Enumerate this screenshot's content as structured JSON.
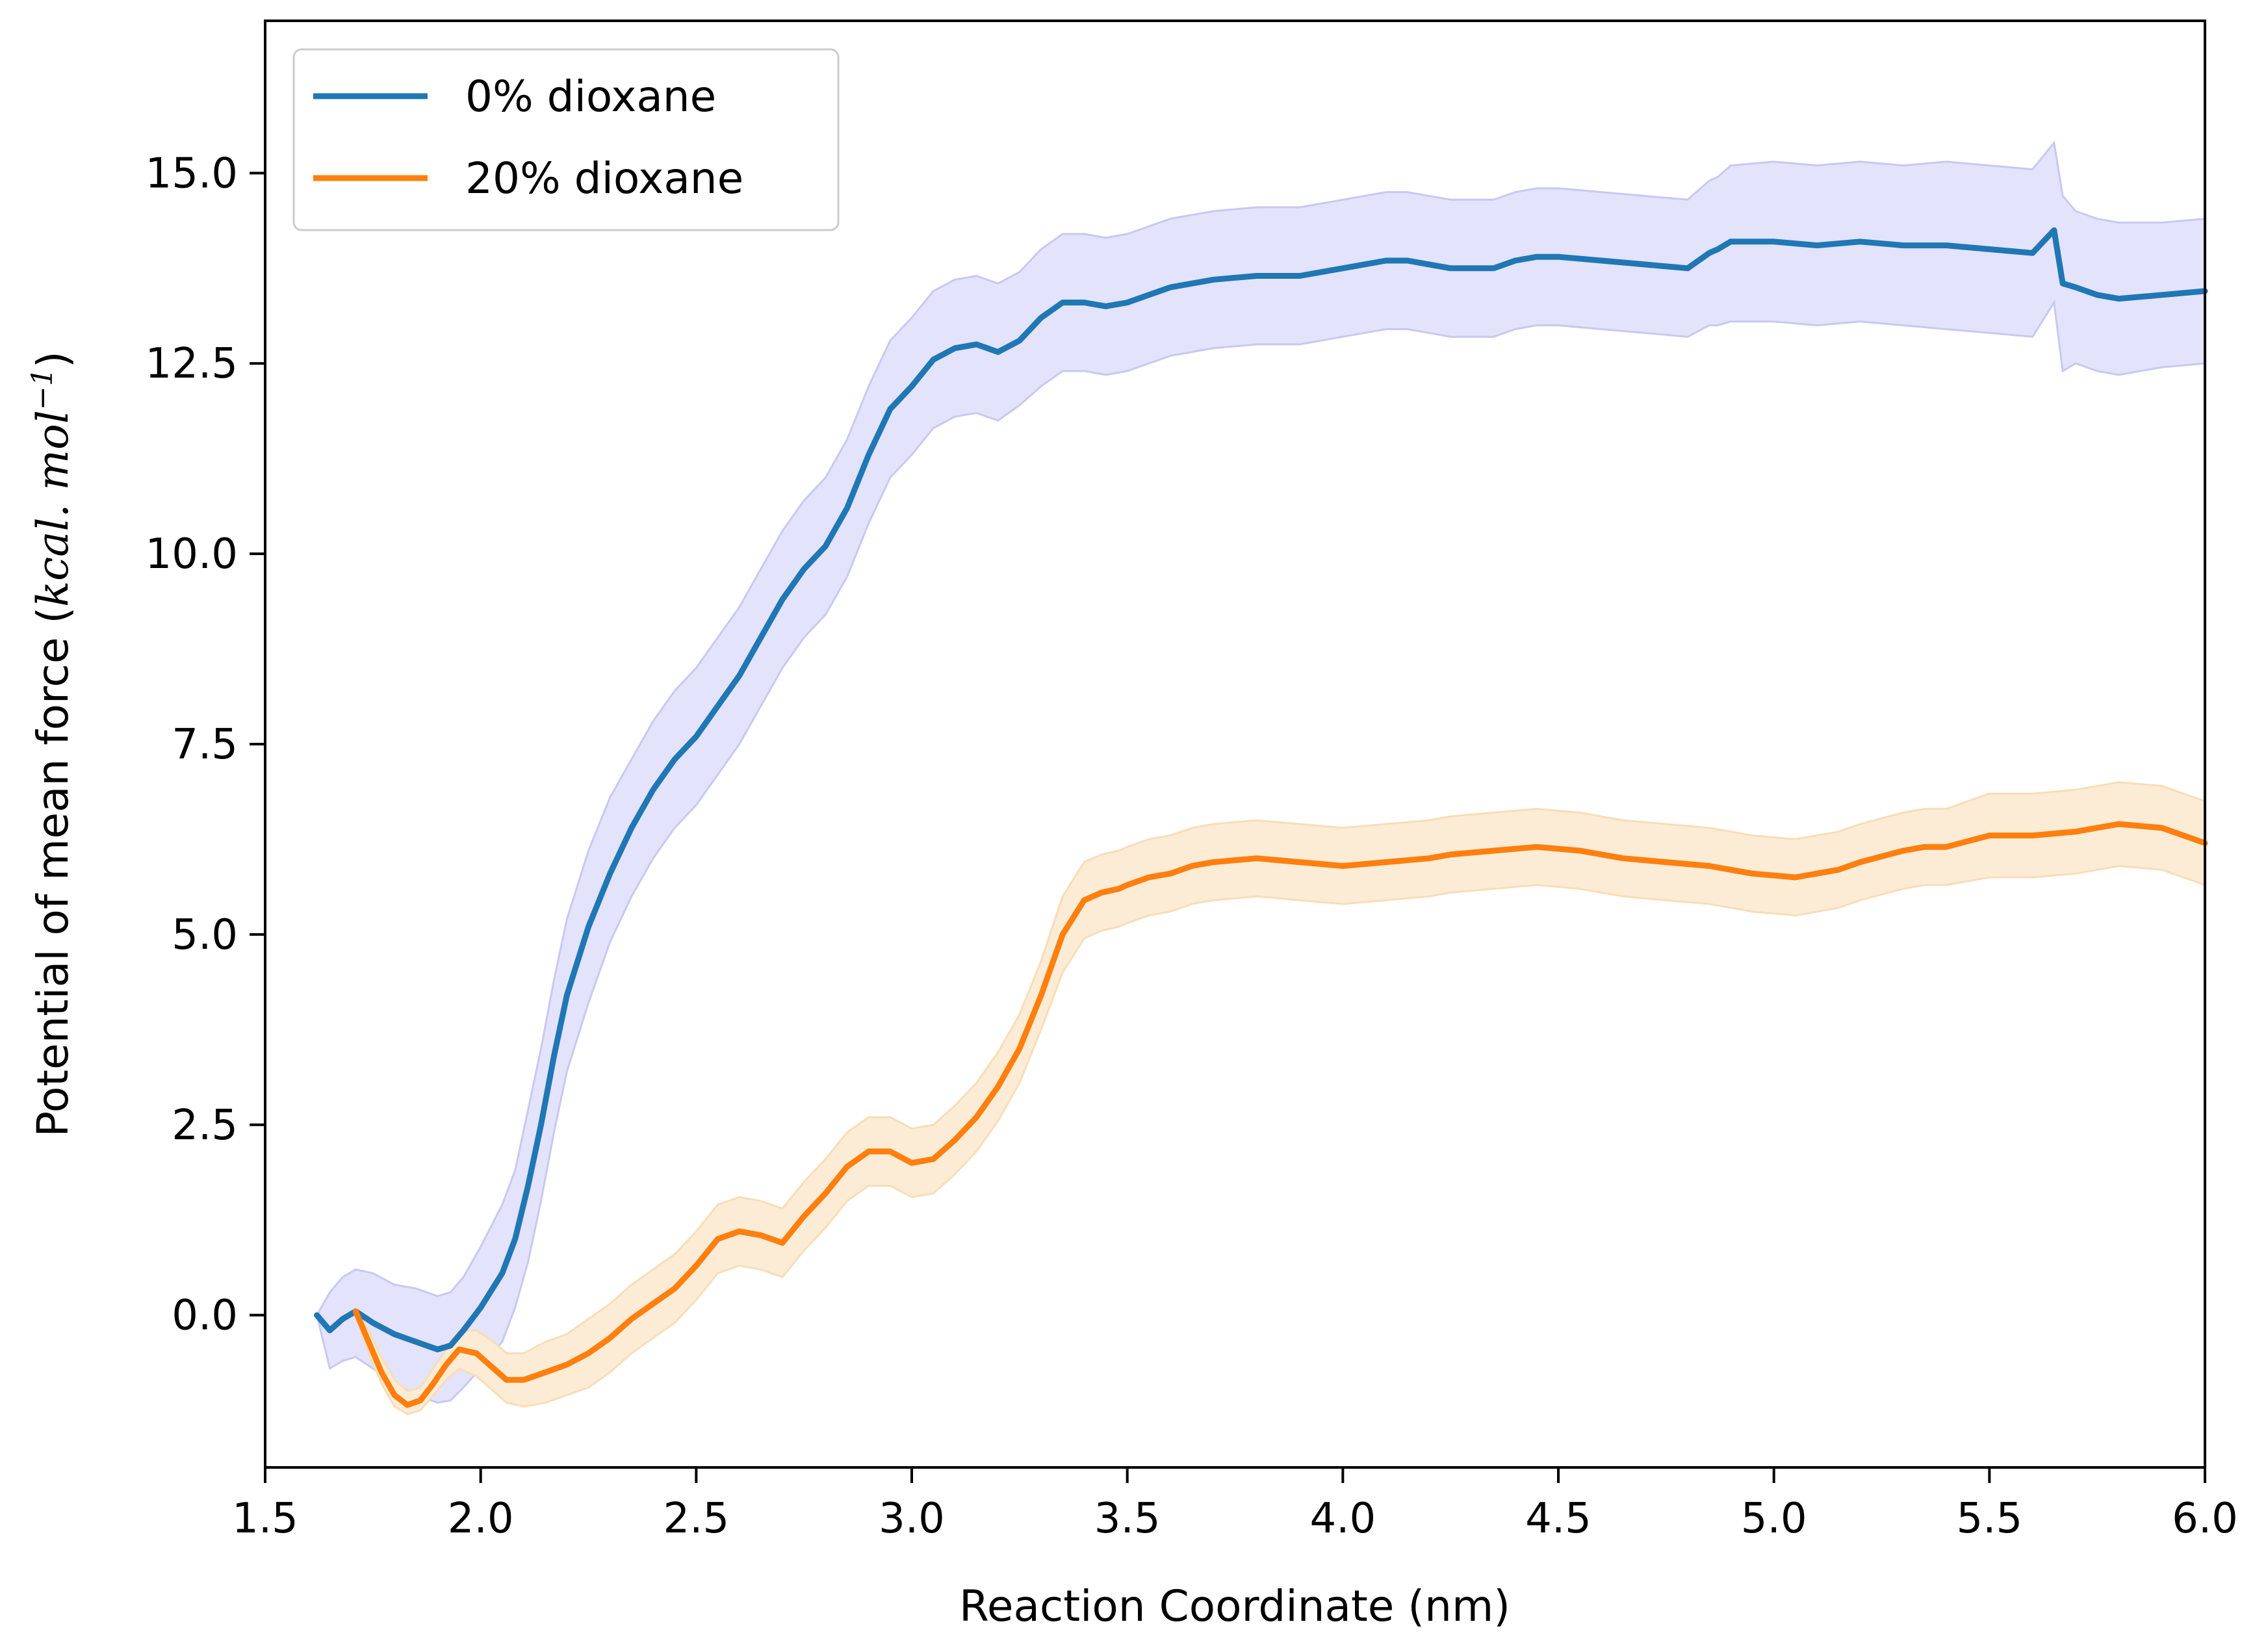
{
  "chart_data": {
    "type": "line",
    "title": "",
    "xlabel": "Reaction Coordinate (nm)",
    "ylabel_main": "Potential of mean force (",
    "ylabel_unit": "kcal. mol",
    "ylabel_exp": "−1",
    "ylabel_close": ")",
    "xlim": [
      1.5,
      6.0
    ],
    "ylim": [
      -2.0,
      17.0
    ],
    "xticks": [
      "1.5",
      "2.0",
      "2.5",
      "3.0",
      "3.5",
      "4.0",
      "4.5",
      "5.0",
      "5.5",
      "6.0"
    ],
    "yticks": [
      "0.0",
      "2.5",
      "5.0",
      "7.5",
      "10.0",
      "12.5",
      "15.0"
    ],
    "xtick_values": [
      1.5,
      2.0,
      2.5,
      3.0,
      3.5,
      4.0,
      4.5,
      5.0,
      5.5,
      6.0
    ],
    "ytick_values": [
      0.0,
      2.5,
      5.0,
      7.5,
      10.0,
      12.5,
      15.0
    ],
    "grid": false,
    "legend_position": "top-left",
    "series": [
      {
        "name": "0% dioxane",
        "color": "#1f77b4",
        "band_color": "#e3e3fb",
        "band_edge_color": "#c8c8f3",
        "x": [
          1.62,
          1.65,
          1.68,
          1.71,
          1.75,
          1.8,
          1.85,
          1.9,
          1.93,
          1.96,
          2.0,
          2.05,
          2.08,
          2.11,
          2.14,
          2.17,
          2.2,
          2.25,
          2.3,
          2.35,
          2.4,
          2.45,
          2.5,
          2.55,
          2.6,
          2.65,
          2.7,
          2.75,
          2.8,
          2.85,
          2.9,
          2.95,
          3.0,
          3.05,
          3.1,
          3.15,
          3.2,
          3.25,
          3.3,
          3.35,
          3.4,
          3.45,
          3.5,
          3.55,
          3.6,
          3.7,
          3.8,
          3.9,
          4.0,
          4.1,
          4.15,
          4.2,
          4.25,
          4.35,
          4.4,
          4.45,
          4.5,
          4.6,
          4.7,
          4.8,
          4.85,
          4.87,
          4.9,
          5.0,
          5.1,
          5.2,
          5.3,
          5.4,
          5.5,
          5.6,
          5.65,
          5.67,
          5.7,
          5.75,
          5.8,
          5.9,
          6.0
        ],
        "y": [
          0.0,
          -0.2,
          -0.05,
          0.05,
          -0.1,
          -0.25,
          -0.35,
          -0.45,
          -0.4,
          -0.2,
          0.1,
          0.55,
          1.0,
          1.7,
          2.5,
          3.4,
          4.2,
          5.1,
          5.8,
          6.4,
          6.9,
          7.3,
          7.6,
          8.0,
          8.4,
          8.9,
          9.4,
          9.8,
          10.1,
          10.6,
          11.3,
          11.9,
          12.2,
          12.55,
          12.7,
          12.75,
          12.65,
          12.8,
          13.1,
          13.3,
          13.3,
          13.25,
          13.3,
          13.4,
          13.5,
          13.6,
          13.65,
          13.65,
          13.75,
          13.85,
          13.85,
          13.8,
          13.75,
          13.75,
          13.85,
          13.9,
          13.9,
          13.85,
          13.8,
          13.75,
          13.95,
          14.0,
          14.1,
          14.1,
          14.05,
          14.1,
          14.05,
          14.05,
          14.0,
          13.95,
          14.25,
          13.55,
          13.5,
          13.4,
          13.35,
          13.4,
          13.45
        ],
        "lower": [
          0.0,
          -0.7,
          -0.6,
          -0.55,
          -0.7,
          -0.9,
          -1.05,
          -1.15,
          -1.12,
          -0.95,
          -0.7,
          -0.35,
          0.1,
          0.7,
          1.5,
          2.4,
          3.2,
          4.1,
          4.9,
          5.5,
          6.0,
          6.4,
          6.7,
          7.1,
          7.5,
          8.0,
          8.5,
          8.9,
          9.2,
          9.7,
          10.4,
          11.0,
          11.3,
          11.65,
          11.8,
          11.85,
          11.75,
          11.95,
          12.2,
          12.4,
          12.4,
          12.35,
          12.4,
          12.5,
          12.6,
          12.7,
          12.75,
          12.75,
          12.85,
          12.95,
          12.95,
          12.9,
          12.85,
          12.85,
          12.95,
          13.0,
          13.0,
          12.95,
          12.9,
          12.85,
          13.0,
          13.0,
          13.05,
          13.05,
          13.0,
          13.05,
          13.0,
          12.95,
          12.9,
          12.85,
          13.3,
          12.4,
          12.5,
          12.4,
          12.35,
          12.45,
          12.5
        ],
        "upper": [
          0.0,
          0.3,
          0.5,
          0.6,
          0.55,
          0.4,
          0.35,
          0.25,
          0.3,
          0.5,
          0.9,
          1.45,
          1.9,
          2.7,
          3.5,
          4.4,
          5.2,
          6.1,
          6.8,
          7.3,
          7.8,
          8.2,
          8.5,
          8.9,
          9.3,
          9.8,
          10.3,
          10.7,
          11.0,
          11.5,
          12.2,
          12.8,
          13.1,
          13.45,
          13.6,
          13.65,
          13.55,
          13.7,
          14.0,
          14.2,
          14.2,
          14.15,
          14.2,
          14.3,
          14.4,
          14.5,
          14.55,
          14.55,
          14.65,
          14.75,
          14.75,
          14.7,
          14.65,
          14.65,
          14.75,
          14.8,
          14.8,
          14.75,
          14.7,
          14.65,
          14.9,
          14.95,
          15.1,
          15.15,
          15.1,
          15.15,
          15.1,
          15.15,
          15.1,
          15.05,
          15.4,
          14.7,
          14.5,
          14.4,
          14.35,
          14.35,
          14.4
        ]
      },
      {
        "name": "20% dioxane",
        "color": "#ff7f0e",
        "band_color": "#fcecd6",
        "band_edge_color": "#f8ddb7",
        "x": [
          1.71,
          1.74,
          1.77,
          1.8,
          1.83,
          1.86,
          1.89,
          1.92,
          1.95,
          1.99,
          2.03,
          2.06,
          2.1,
          2.15,
          2.2,
          2.25,
          2.3,
          2.35,
          2.4,
          2.45,
          2.5,
          2.55,
          2.6,
          2.65,
          2.7,
          2.75,
          2.8,
          2.85,
          2.9,
          2.95,
          3.0,
          3.05,
          3.1,
          3.15,
          3.2,
          3.25,
          3.3,
          3.35,
          3.4,
          3.44,
          3.48,
          3.5,
          3.55,
          3.6,
          3.65,
          3.7,
          3.8,
          3.9,
          4.0,
          4.1,
          4.2,
          4.25,
          4.35,
          4.45,
          4.55,
          4.65,
          4.75,
          4.85,
          4.95,
          5.05,
          5.15,
          5.2,
          5.3,
          5.35,
          5.4,
          5.5,
          5.6,
          5.7,
          5.8,
          5.9,
          6.0
        ],
        "y": [
          0.05,
          -0.35,
          -0.75,
          -1.05,
          -1.18,
          -1.12,
          -0.9,
          -0.65,
          -0.45,
          -0.5,
          -0.7,
          -0.85,
          -0.85,
          -0.75,
          -0.65,
          -0.5,
          -0.3,
          -0.05,
          0.15,
          0.35,
          0.65,
          1.0,
          1.1,
          1.05,
          0.95,
          1.3,
          1.6,
          1.95,
          2.15,
          2.15,
          2.0,
          2.05,
          2.3,
          2.6,
          3.0,
          3.5,
          4.2,
          5.0,
          5.45,
          5.55,
          5.6,
          5.65,
          5.75,
          5.8,
          5.9,
          5.95,
          6.0,
          5.95,
          5.9,
          5.95,
          6.0,
          6.05,
          6.1,
          6.15,
          6.1,
          6.0,
          5.95,
          5.9,
          5.8,
          5.75,
          5.85,
          5.95,
          6.1,
          6.15,
          6.15,
          6.3,
          6.3,
          6.35,
          6.45,
          6.4,
          6.2
        ],
        "lower": [
          0.05,
          -0.5,
          -0.9,
          -1.2,
          -1.3,
          -1.25,
          -1.05,
          -0.85,
          -0.7,
          -0.8,
          -1.0,
          -1.15,
          -1.2,
          -1.15,
          -1.05,
          -0.95,
          -0.75,
          -0.5,
          -0.3,
          -0.1,
          0.2,
          0.55,
          0.65,
          0.6,
          0.5,
          0.85,
          1.15,
          1.5,
          1.7,
          1.7,
          1.55,
          1.6,
          1.85,
          2.15,
          2.55,
          3.05,
          3.75,
          4.5,
          4.95,
          5.05,
          5.1,
          5.15,
          5.25,
          5.3,
          5.4,
          5.45,
          5.5,
          5.45,
          5.4,
          5.45,
          5.5,
          5.55,
          5.6,
          5.65,
          5.6,
          5.5,
          5.45,
          5.4,
          5.3,
          5.25,
          5.35,
          5.45,
          5.6,
          5.65,
          5.65,
          5.75,
          5.75,
          5.8,
          5.9,
          5.85,
          5.65
        ],
        "upper": [
          0.05,
          -0.2,
          -0.55,
          -0.85,
          -1.0,
          -0.95,
          -0.7,
          -0.45,
          -0.2,
          -0.2,
          -0.35,
          -0.5,
          -0.5,
          -0.35,
          -0.25,
          -0.05,
          0.15,
          0.4,
          0.6,
          0.8,
          1.1,
          1.45,
          1.55,
          1.5,
          1.4,
          1.75,
          2.05,
          2.4,
          2.6,
          2.6,
          2.45,
          2.5,
          2.75,
          3.05,
          3.45,
          3.95,
          4.65,
          5.5,
          5.95,
          6.05,
          6.1,
          6.15,
          6.25,
          6.3,
          6.4,
          6.45,
          6.5,
          6.45,
          6.4,
          6.45,
          6.5,
          6.55,
          6.6,
          6.65,
          6.6,
          6.5,
          6.45,
          6.4,
          6.3,
          6.25,
          6.35,
          6.45,
          6.6,
          6.65,
          6.65,
          6.85,
          6.85,
          6.9,
          7.0,
          6.95,
          6.75
        ]
      }
    ]
  }
}
